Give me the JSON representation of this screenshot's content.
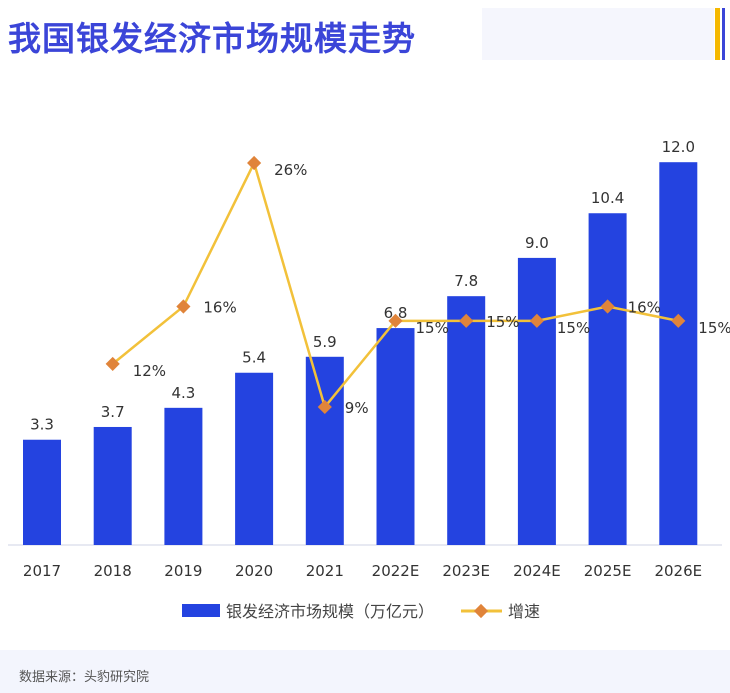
{
  "header": {
    "title": "我国银发经济市场规模走势"
  },
  "footer": {
    "source": "数据来源：头豹研究院"
  },
  "colors": {
    "bar": "#2443e0",
    "line": "#f2c13a",
    "marker": "#e0843a",
    "title": "#3b45d8",
    "accent": "#f5b800"
  },
  "chart_data": {
    "type": "bar",
    "categories": [
      "2017",
      "2018",
      "2019",
      "2020",
      "2021",
      "2022E",
      "2023E",
      "2024E",
      "2025E",
      "2026E"
    ],
    "series": [
      {
        "name": "银发经济市场规模（万亿元）",
        "type": "bar",
        "values": [
          3.3,
          3.7,
          4.3,
          5.4,
          5.9,
          6.8,
          7.8,
          9.0,
          10.4,
          12.0
        ],
        "labels": [
          "3.3",
          "3.7",
          "4.3",
          "5.4",
          "5.9",
          "6.8",
          "7.8",
          "9.0",
          "10.4",
          "12.0"
        ]
      },
      {
        "name": "增速",
        "type": "line",
        "values": [
          null,
          12,
          16,
          26,
          9,
          15,
          15,
          15,
          16,
          15
        ],
        "labels": [
          "",
          "12%",
          "16%",
          "26%",
          "9%",
          "15%",
          "15%",
          "15%",
          "16%",
          "15%"
        ]
      }
    ],
    "legend": "bottom",
    "grid": false
  }
}
